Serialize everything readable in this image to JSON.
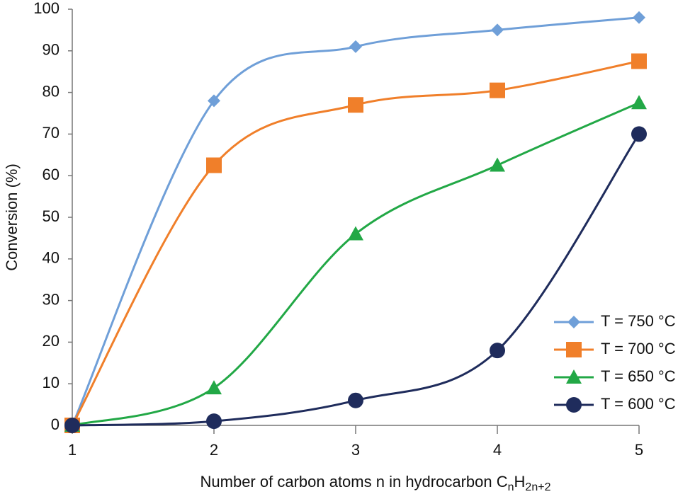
{
  "chart_data": {
    "type": "line",
    "x_label": [
      "Number of carbon atoms n in hydrocarbon C",
      "n",
      "H",
      "2n+2"
    ],
    "y_label": "Conversion (%)",
    "x": [
      1,
      2,
      3,
      4,
      5
    ],
    "series": [
      {
        "name": "T = 750 °C",
        "color": "#6f9fd8",
        "marker": "diamond",
        "values": [
          0,
          78,
          91,
          95,
          98
        ]
      },
      {
        "name": "T = 700 °C",
        "color": "#f07f2a",
        "marker": "square",
        "values": [
          0,
          62.5,
          77,
          80.5,
          87.5
        ]
      },
      {
        "name": "T = 650 °C",
        "color": "#22a846",
        "marker": "triangle",
        "values": [
          0,
          9,
          46,
          62.5,
          77.5
        ]
      },
      {
        "name": "T = 600 °C",
        "color": "#1f2c5c",
        "marker": "circle",
        "values": [
          0,
          1,
          6,
          18,
          70
        ]
      }
    ],
    "xlim": [
      1,
      5
    ],
    "xticks": [
      1,
      2,
      3,
      4,
      5
    ],
    "ylim": [
      0,
      100
    ],
    "yticks": [
      0,
      10,
      20,
      30,
      40,
      50,
      60,
      70,
      80,
      90,
      100
    ],
    "smooth": true,
    "legend": "lower right"
  }
}
